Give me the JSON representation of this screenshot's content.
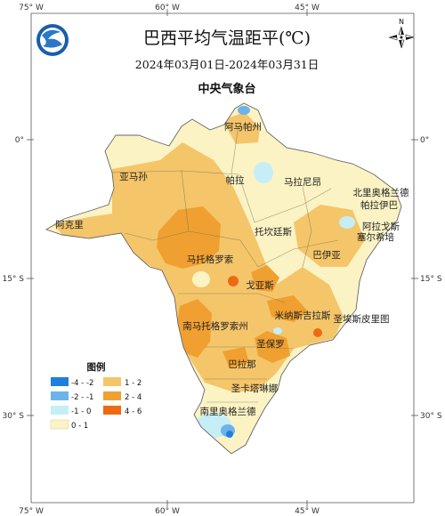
{
  "title": "巴西平均气温距平(℃)",
  "date_range": "2024年03月01日-2024年03月31日",
  "organization": "中央气象台",
  "compass_label": "N",
  "axes": {
    "top": [
      "75° W",
      "60° W",
      "45° W"
    ],
    "bottom": [
      "75° W",
      "60° W",
      "45° W"
    ],
    "left": [
      "0°",
      "15° S",
      "30° S"
    ],
    "right": [
      "0°",
      "15° S",
      "30° S"
    ]
  },
  "states": [
    "阿马帕州",
    "亚马孙",
    "帕拉",
    "马拉尼昂",
    "北里奥格兰德",
    "帕拉伊巴",
    "阿克里",
    "阿拉戈斯",
    "塞尔希培",
    "托坎廷斯",
    "巴伊亚",
    "马托格罗索",
    "戈亚斯",
    "米纳斯吉拉斯",
    "圣埃斯皮里图",
    "南马托格罗索州",
    "圣保罗",
    "巴拉那",
    "圣卡塔琳娜",
    "南里奥格兰德"
  ],
  "legend": {
    "title": "图例",
    "items": [
      {
        "label": "-4 - -2",
        "color": "#1e7fe0"
      },
      {
        "label": "1 - 2",
        "color": "#f5c56a"
      },
      {
        "label": "-2 - -1",
        "color": "#6bb3ea"
      },
      {
        "label": "2 - 4",
        "color": "#f0a030"
      },
      {
        "label": "-1 - 0",
        "color": "#c6eef6"
      },
      {
        "label": "4 - 6",
        "color": "#ee6a12"
      },
      {
        "label": "0 - 1",
        "color": "#fbf3c4"
      }
    ]
  }
}
